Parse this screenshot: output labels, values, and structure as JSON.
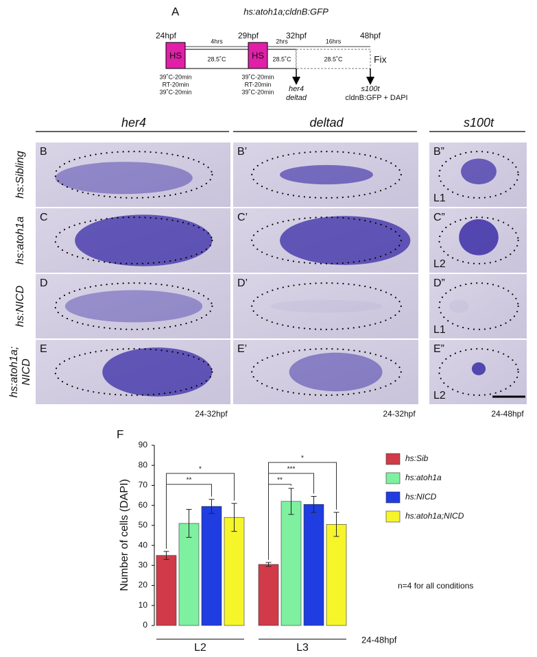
{
  "panel_a": {
    "label": "A",
    "title": "hs:atoh1a;cldnB:GFP",
    "times": [
      "24hpf",
      "29hpf",
      "32hpf",
      "48hpf"
    ],
    "durations": [
      "4hrs",
      "2hrs",
      "16hrs"
    ],
    "hs": [
      "HS",
      "HS"
    ],
    "temps": [
      "28.5˚C",
      "28.5˚C",
      "28.5˚C"
    ],
    "fix": "Fix",
    "hs_conditions": [
      [
        "39˚C-20min",
        "RT-20min",
        "39˚C-20min"
      ],
      [
        "39˚C-20min",
        "RT-20min",
        "39˚C-20min"
      ]
    ],
    "readouts": [
      [
        "her4",
        "deltad"
      ],
      [
        "s100t",
        "cldnB:GFP + DAPI"
      ]
    ]
  },
  "panels": {
    "columns": [
      "her4",
      "deltad",
      "s100t"
    ],
    "rows": [
      {
        "label": [
          "hs:Sibling"
        ],
        "panels": [
          "B",
          "B’",
          "B”"
        ],
        "level": "L1"
      },
      {
        "label": [
          "hs:atoh1a"
        ],
        "panels": [
          "C",
          "C’",
          "C”"
        ],
        "level": "L2"
      },
      {
        "label": [
          "hs:NICD"
        ],
        "panels": [
          "D",
          "D’",
          "D”"
        ],
        "level": "L1"
      },
      {
        "label": [
          "hs:atoh1a;",
          "NICD"
        ],
        "panels": [
          "E",
          "E’",
          "E”"
        ],
        "level": "L2"
      }
    ],
    "stages": [
      "24-32hpf",
      "24-32hpf",
      "24-48hpf"
    ]
  },
  "chart_data": {
    "type": "bar",
    "panel_label": "F",
    "y_label": "Number of cells (DAPI)",
    "categories": [
      "L2",
      "L3"
    ],
    "stage": "24-48hpf",
    "note": "n=4 for all conditions",
    "series": [
      {
        "name": "hs:Sib",
        "color": "#d13a48",
        "values": [
          35,
          30.5
        ],
        "errors": [
          2,
          1
        ]
      },
      {
        "name": "hs:atoh1a",
        "color": "#7ef0a0",
        "values": [
          51,
          62
        ],
        "errors": [
          7,
          6.5
        ]
      },
      {
        "name": "hs:NICD",
        "color": "#1f3de0",
        "values": [
          59.5,
          60.5
        ],
        "errors": [
          3.5,
          4
        ]
      },
      {
        "name": "hs:atoh1a;NICD",
        "color": "#f5f52a",
        "values": [
          54,
          50.5
        ],
        "errors": [
          7,
          6
        ]
      }
    ],
    "brackets": [
      {
        "category": 0,
        "from": 0,
        "to": 2,
        "label": "**"
      },
      {
        "category": 0,
        "from": 0,
        "to": 3,
        "label": "*"
      },
      {
        "category": 1,
        "from": 0,
        "to": 1,
        "label": "**"
      },
      {
        "category": 1,
        "from": 0,
        "to": 2,
        "label": "***"
      },
      {
        "category": 1,
        "from": 0,
        "to": 3,
        "label": "*"
      }
    ],
    "ylim": [
      0,
      90
    ],
    "yticks": [
      0,
      10,
      20,
      30,
      40,
      50,
      60,
      70,
      80,
      90
    ],
    "legend": "right"
  }
}
